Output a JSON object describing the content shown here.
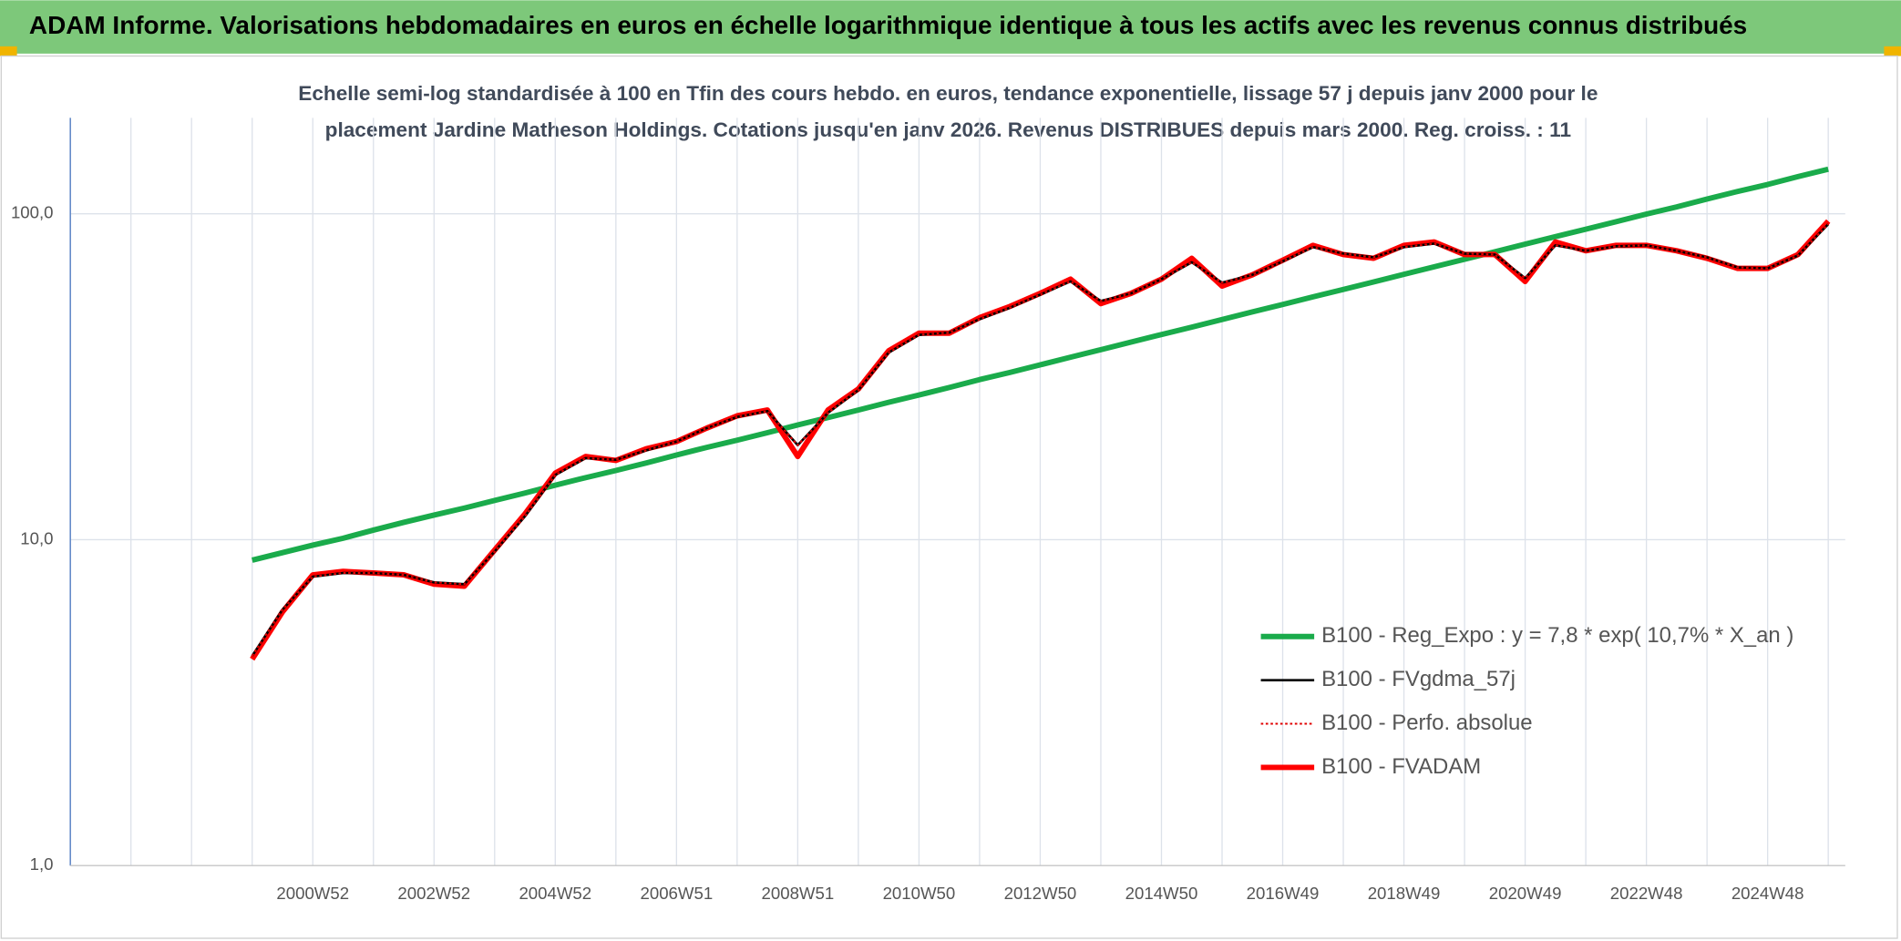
{
  "header": {
    "title": "ADAM Informe. Valorisations hebdomadaires en euros en échelle logarithmique identique à tous les actifs avec les revenus connus distribués"
  },
  "chart_data": {
    "type": "line",
    "subtitle_lines": [
      "Echelle semi-log standardisée à 100 en Tfin des cours hebdo. en euros, tendance exponentielle, lissage 57 j depuis janv 2000 pour le",
      "placement Jardine Matheson Holdings. Cotations jusqu'en janv 2026. Revenus DISTRIBUES depuis mars 2000. Reg. croiss. : 11"
    ],
    "log_scale": true,
    "grid": true,
    "ylim": [
      1,
      197
    ],
    "yticks": [
      {
        "value": 1,
        "label": "1,0"
      },
      {
        "value": 10,
        "label": "10,0"
      },
      {
        "value": 100,
        "label": "100,0"
      }
    ],
    "categories": [
      null,
      null,
      "2000W52",
      null,
      null,
      null,
      "2002W52",
      null,
      null,
      null,
      "2004W52",
      null,
      null,
      null,
      "2006W51",
      null,
      null,
      null,
      "2008W51",
      null,
      null,
      null,
      "2010W50",
      null,
      null,
      null,
      "2012W50",
      null,
      null,
      null,
      "2014W50",
      null,
      null,
      null,
      "2016W49",
      null,
      null,
      null,
      "2018W49",
      null,
      null,
      null,
      "2020W49",
      null,
      null,
      null,
      "2022W48",
      null,
      null,
      null,
      "2024W48",
      null,
      null
    ],
    "series": [
      {
        "name": "B100 - Reg_Expo : y = 7,8 * exp( 10,7% *  X_an )",
        "color": "#1aab4b",
        "style": "solid",
        "values": [
          8.65,
          9.12,
          9.62,
          10.1,
          10.7,
          11.3,
          11.9,
          12.5,
          13.2,
          13.9,
          14.7,
          15.5,
          16.3,
          17.2,
          18.2,
          19.2,
          20.2,
          21.3,
          22.5,
          23.7,
          25.0,
          26.4,
          27.8,
          29.3,
          31.0,
          32.6,
          34.4,
          36.3,
          38.3,
          40.4,
          42.6,
          44.9,
          47.4,
          50.0,
          52.7,
          55.6,
          58.6,
          61.8,
          65.2,
          68.8,
          72.5,
          76.5,
          80.7,
          85.1,
          89.7,
          94.6,
          99.8,
          105,
          111,
          117,
          123,
          130,
          137
        ]
      },
      {
        "name": "B100 - FVgdma_57j",
        "color": "#000000",
        "style": "thin",
        "values": [
          4.4,
          6.1,
          7.7,
          7.9,
          7.9,
          7.8,
          7.4,
          7.3,
          9.2,
          11.8,
          15.8,
          17.8,
          17.6,
          18.8,
          20.0,
          22.0,
          23.8,
          24.8,
          19.5,
          24.5,
          28.8,
          37.5,
          42.5,
          43.2,
          47.5,
          51.5,
          56.5,
          62.0,
          54.0,
          57.0,
          63.0,
          71.0,
          61.5,
          65.0,
          71.5,
          79.0,
          75.5,
          73.5,
          79.0,
          81.0,
          75.5,
          75.0,
          63.5,
          80.0,
          77.0,
          79.5,
          80.0,
          77.0,
          73.5,
          68.5,
          68.0,
          74.5,
          93.0
        ]
      },
      {
        "name": "B100 - Perfo. absolue",
        "color": "#e00000",
        "style": "dotted",
        "values": [
          4.4,
          6.1,
          7.7,
          7.9,
          7.9,
          7.8,
          7.4,
          7.3,
          9.2,
          11.8,
          15.8,
          17.8,
          17.6,
          18.8,
          20.0,
          22.0,
          23.8,
          24.8,
          19.5,
          24.5,
          28.8,
          37.5,
          42.5,
          43.2,
          47.5,
          51.5,
          56.5,
          62.0,
          54.0,
          57.0,
          63.0,
          71.0,
          61.5,
          65.0,
          71.5,
          79.0,
          75.5,
          73.5,
          79.0,
          81.0,
          75.5,
          75.0,
          63.5,
          80.0,
          77.0,
          79.5,
          80.0,
          77.0,
          73.5,
          68.5,
          68.0,
          74.5,
          93.0
        ]
      },
      {
        "name": "B100 - FVADAM",
        "color": "#ff0000",
        "style": "thick",
        "values": [
          4.3,
          6,
          7.8,
          8.0,
          7.9,
          7.8,
          7.3,
          7.2,
          9.3,
          12,
          16,
          18,
          17.5,
          19,
          20,
          22,
          24,
          25,
          18,
          25,
          29,
          38,
          43,
          43,
          48,
          52,
          57,
          63,
          53,
          57,
          63,
          73,
          60,
          65,
          72,
          80,
          75,
          73,
          80,
          82,
          75,
          75,
          62,
          82,
          77,
          80,
          80,
          77,
          73,
          68,
          68,
          75,
          95
        ]
      }
    ]
  }
}
